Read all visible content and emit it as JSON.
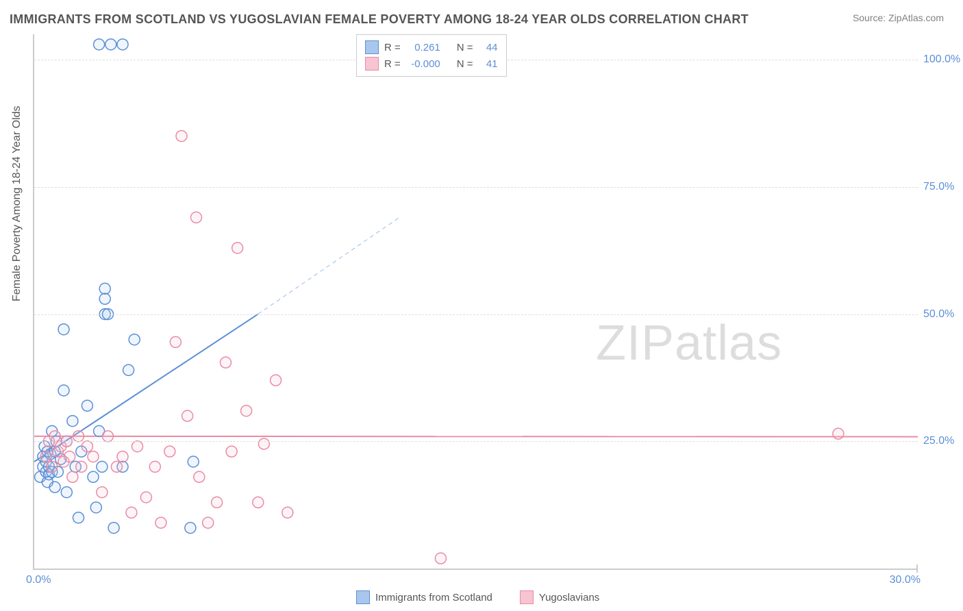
{
  "title": "IMMIGRANTS FROM SCOTLAND VS YUGOSLAVIAN FEMALE POVERTY AMONG 18-24 YEAR OLDS CORRELATION CHART",
  "source": "Source: ZipAtlas.com",
  "watermark_a": "ZIP",
  "watermark_b": "atlas",
  "y_axis_label": "Female Poverty Among 18-24 Year Olds",
  "chart": {
    "type": "scatter",
    "background_color": "#ffffff",
    "grid_color": "#dddddd",
    "axis_color": "#cccccc",
    "text_color": "#555555",
    "tick_label_color": "#5b8fd6",
    "xlim": [
      0,
      30
    ],
    "ylim": [
      0,
      105
    ],
    "x_ticks": [
      0,
      30
    ],
    "x_tick_labels": [
      "0.0%",
      "30.0%"
    ],
    "y_ticks": [
      25,
      50,
      75,
      100
    ],
    "y_tick_labels": [
      "25.0%",
      "50.0%",
      "75.0%",
      "100.0%"
    ],
    "marker_radius": 8,
    "marker_stroke_width": 1.5,
    "marker_fill_opacity": 0.18,
    "trend_line_width": 2,
    "trend_dash": "6,5",
    "series": [
      {
        "key": "scotland",
        "label": "Immigrants from Scotland",
        "color_stroke": "#5b8fd6",
        "color_fill": "#a9c6ec",
        "R": "0.261",
        "N": "44",
        "trend": {
          "x1": 0,
          "y1": 21,
          "x2": 7.6,
          "y2": 50,
          "ext_x2": 12.4,
          "ext_y2": 69
        },
        "points": [
          [
            0.2,
            18
          ],
          [
            0.3,
            20
          ],
          [
            0.3,
            22
          ],
          [
            0.35,
            24
          ],
          [
            0.4,
            19
          ],
          [
            0.4,
            21
          ],
          [
            0.45,
            23
          ],
          [
            0.45,
            17
          ],
          [
            0.5,
            18.5
          ],
          [
            0.5,
            20
          ],
          [
            0.55,
            22.5
          ],
          [
            0.6,
            19
          ],
          [
            0.6,
            27
          ],
          [
            0.7,
            16
          ],
          [
            0.7,
            23
          ],
          [
            0.75,
            25
          ],
          [
            0.8,
            19
          ],
          [
            0.9,
            21.5
          ],
          [
            1.0,
            35
          ],
          [
            1.0,
            47
          ],
          [
            1.1,
            15
          ],
          [
            1.1,
            25
          ],
          [
            1.3,
            29
          ],
          [
            1.4,
            20
          ],
          [
            1.5,
            10
          ],
          [
            1.6,
            23
          ],
          [
            1.8,
            32
          ],
          [
            2.0,
            18
          ],
          [
            2.1,
            12
          ],
          [
            2.2,
            27
          ],
          [
            2.3,
            20
          ],
          [
            2.4,
            55
          ],
          [
            2.4,
            53
          ],
          [
            2.4,
            50
          ],
          [
            2.5,
            50
          ],
          [
            2.7,
            8
          ],
          [
            3.0,
            20
          ],
          [
            3.2,
            39
          ],
          [
            3.4,
            45
          ],
          [
            2.2,
            103
          ],
          [
            2.6,
            103
          ],
          [
            3.0,
            103
          ],
          [
            5.3,
            8
          ],
          [
            5.4,
            21
          ]
        ]
      },
      {
        "key": "yugoslavians",
        "label": "Yugoslavians",
        "color_stroke": "#e98ba4",
        "color_fill": "#f6c4d2",
        "R": "-0.000",
        "N": "41",
        "trend": {
          "x1": 0,
          "y1": 26,
          "x2": 30,
          "y2": 25.9,
          "ext_x2": 30,
          "ext_y2": 25.9
        },
        "points": [
          [
            0.4,
            22
          ],
          [
            0.5,
            25
          ],
          [
            0.6,
            20
          ],
          [
            0.7,
            26
          ],
          [
            0.8,
            23
          ],
          [
            0.9,
            24
          ],
          [
            1.0,
            21
          ],
          [
            1.1,
            25
          ],
          [
            1.2,
            22
          ],
          [
            1.3,
            18
          ],
          [
            1.5,
            26
          ],
          [
            1.6,
            20
          ],
          [
            1.8,
            24
          ],
          [
            2.0,
            22
          ],
          [
            2.3,
            15
          ],
          [
            2.5,
            26
          ],
          [
            2.8,
            20
          ],
          [
            3.0,
            22
          ],
          [
            3.3,
            11
          ],
          [
            3.5,
            24
          ],
          [
            3.8,
            14
          ],
          [
            4.1,
            20
          ],
          [
            4.3,
            9
          ],
          [
            4.6,
            23
          ],
          [
            4.8,
            44.5
          ],
          [
            5.0,
            85
          ],
          [
            5.2,
            30
          ],
          [
            5.5,
            69
          ],
          [
            5.6,
            18
          ],
          [
            5.9,
            9
          ],
          [
            6.2,
            13
          ],
          [
            6.5,
            40.5
          ],
          [
            6.7,
            23
          ],
          [
            6.9,
            63
          ],
          [
            7.2,
            31
          ],
          [
            7.6,
            13
          ],
          [
            7.8,
            24.5
          ],
          [
            8.2,
            37
          ],
          [
            8.6,
            11
          ],
          [
            13.8,
            2
          ],
          [
            27.3,
            26.5
          ]
        ]
      }
    ]
  },
  "legend_labels": {
    "R_prefix": "R =",
    "N_prefix": "N ="
  }
}
